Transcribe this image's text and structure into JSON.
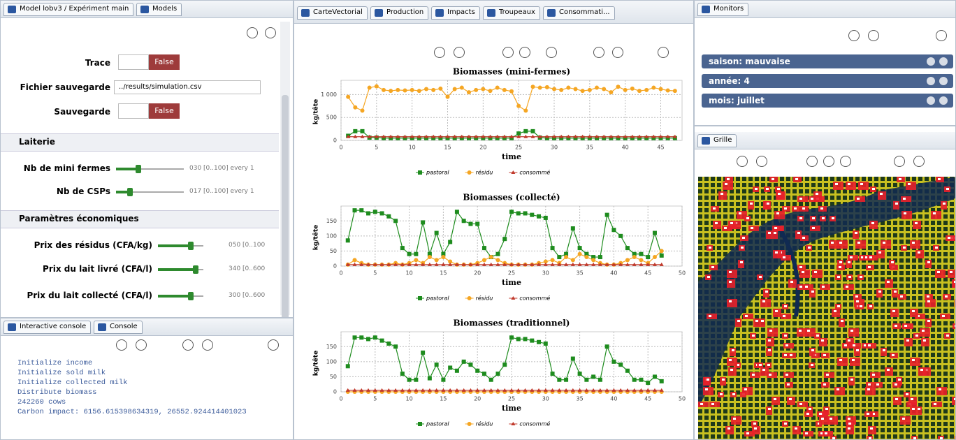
{
  "params_panel": {
    "tabs": [
      "Model lobv3 / Expériment main",
      "Models"
    ],
    "fields": [
      {
        "label": "Trace",
        "value": "False"
      },
      {
        "label": "Fichier sauvegarde",
        "value": "../results/simulation.csv"
      },
      {
        "label": "Sauvegarde",
        "value": "False"
      }
    ],
    "sections": [
      {
        "title": "Laiterie",
        "sliders": [
          {
            "label": "Nb de mini fermes",
            "value_text": "030 [0..100] every 1"
          },
          {
            "label": "Nb de CSPs",
            "value_text": "017 [0..100] every 1"
          }
        ]
      },
      {
        "title": "Paramètres économiques",
        "sliders": [
          {
            "label": "Prix des résidus (CFA/kg)",
            "value_text": "050 [0..100"
          },
          {
            "label": "Prix du lait livré (CFA/l)",
            "value_text": "340 [0..600"
          },
          {
            "label": "Prix du lait collecté (CFA/l)",
            "value_text": "300 [0..600"
          }
        ]
      }
    ]
  },
  "console": {
    "tabs": [
      "Interactive console",
      "Console"
    ],
    "lines": [
      "Initialize income",
      "Initialize sold milk",
      "Initialize collected milk",
      "Distribute biomass",
      "242260 cows",
      "Carbon impact: 6156.615398634319, 26552.924414401023"
    ]
  },
  "display_tabs": [
    "CarteVectorial",
    "Production",
    "Impacts",
    "Troupeaux",
    "Consommati..."
  ],
  "chart_data": [
    {
      "type": "line",
      "title": "Biomasses (mini-fermes)",
      "x_label": "time",
      "y_label": "kg/tête",
      "xlim": [
        0,
        48
      ],
      "xticks": [
        0,
        5,
        10,
        15,
        20,
        25,
        30,
        35,
        40,
        45
      ],
      "ylim": [
        0,
        1250
      ],
      "yticks": [
        0,
        500,
        {
          "value": 1000,
          "label": "1 000"
        }
      ],
      "grid": true,
      "x": [
        1,
        2,
        3,
        4,
        5,
        6,
        7,
        8,
        9,
        10,
        11,
        12,
        13,
        14,
        15,
        16,
        17,
        18,
        19,
        20,
        21,
        22,
        23,
        24,
        25,
        26,
        27,
        28,
        29,
        30,
        31,
        32,
        33,
        34,
        35,
        36,
        37,
        38,
        39,
        40,
        41,
        42,
        43,
        44,
        45,
        46,
        47
      ],
      "series": [
        {
          "name": "pastoral",
          "color": "#1e8c1e",
          "marker": "square",
          "values": [
            100,
            200,
            200,
            60,
            60,
            50,
            50,
            50,
            50,
            50,
            50,
            50,
            50,
            50,
            50,
            50,
            50,
            50,
            50,
            50,
            50,
            50,
            50,
            50,
            150,
            200,
            200,
            60,
            50,
            50,
            50,
            50,
            50,
            50,
            50,
            50,
            50,
            50,
            50,
            50,
            50,
            50,
            50,
            50,
            50,
            50,
            50
          ]
        },
        {
          "name": "résidu",
          "color": "#f5a623",
          "marker": "circle",
          "values": [
            950,
            720,
            650,
            1150,
            1180,
            1100,
            1080,
            1100,
            1090,
            1100,
            1080,
            1120,
            1100,
            1130,
            950,
            1120,
            1150,
            1050,
            1100,
            1120,
            1080,
            1150,
            1100,
            1070,
            750,
            650,
            1170,
            1150,
            1160,
            1120,
            1100,
            1150,
            1120,
            1080,
            1100,
            1150,
            1120,
            1050,
            1170,
            1100,
            1130,
            1080,
            1100,
            1150,
            1120,
            1090,
            1080
          ]
        },
        {
          "name": "consommé",
          "color": "#c0392b",
          "marker": "triangle",
          "values": [
            80,
            80,
            80,
            80,
            80,
            80,
            80,
            80,
            80,
            80,
            80,
            80,
            80,
            80,
            80,
            80,
            80,
            80,
            80,
            80,
            80,
            80,
            80,
            80,
            80,
            80,
            80,
            80,
            80,
            80,
            80,
            80,
            80,
            80,
            80,
            80,
            80,
            80,
            80,
            80,
            80,
            80,
            80,
            80,
            80,
            80,
            80
          ]
        }
      ]
    },
    {
      "type": "line",
      "title": "Biomasses (collecté)",
      "x_label": "time",
      "y_label": "kg/tête",
      "xlim": [
        0,
        50
      ],
      "xticks": [
        0,
        5,
        10,
        15,
        20,
        25,
        30,
        35,
        40,
        45,
        50
      ],
      "ylim": [
        0,
        190
      ],
      "yticks": [
        0,
        50,
        100,
        150
      ],
      "grid": true,
      "x": [
        1,
        2,
        3,
        4,
        5,
        6,
        7,
        8,
        9,
        10,
        11,
        12,
        13,
        14,
        15,
        16,
        17,
        18,
        19,
        20,
        21,
        22,
        23,
        24,
        25,
        26,
        27,
        28,
        29,
        30,
        31,
        32,
        33,
        34,
        35,
        36,
        37,
        38,
        39,
        40,
        41,
        42,
        43,
        44,
        45,
        46,
        47
      ],
      "series": [
        {
          "name": "pastoral",
          "color": "#1e8c1e",
          "marker": "square",
          "values": [
            85,
            185,
            185,
            175,
            180,
            175,
            165,
            150,
            60,
            40,
            40,
            145,
            40,
            110,
            40,
            80,
            180,
            150,
            140,
            140,
            60,
            30,
            40,
            90,
            180,
            175,
            175,
            170,
            165,
            160,
            60,
            30,
            40,
            125,
            60,
            40,
            30,
            30,
            170,
            120,
            100,
            60,
            40,
            40,
            30,
            110,
            35
          ]
        },
        {
          "name": "résidu",
          "color": "#f5a623",
          "marker": "circle",
          "values": [
            5,
            20,
            10,
            5,
            5,
            5,
            5,
            10,
            5,
            10,
            20,
            10,
            30,
            20,
            30,
            15,
            5,
            5,
            5,
            10,
            20,
            30,
            20,
            10,
            5,
            5,
            5,
            5,
            10,
            15,
            20,
            10,
            30,
            20,
            40,
            30,
            20,
            10,
            5,
            5,
            10,
            20,
            30,
            20,
            10,
            30,
            50
          ]
        },
        {
          "name": "consommé",
          "color": "#c0392b",
          "marker": "triangle",
          "values": [
            5,
            5,
            5,
            5,
            5,
            5,
            5,
            5,
            5,
            5,
            5,
            5,
            5,
            5,
            5,
            5,
            5,
            5,
            5,
            5,
            5,
            5,
            5,
            5,
            5,
            5,
            5,
            5,
            5,
            5,
            5,
            5,
            5,
            5,
            5,
            5,
            5,
            5,
            5,
            5,
            5,
            5,
            5,
            5,
            5,
            5,
            5
          ]
        }
      ]
    },
    {
      "type": "line",
      "title": "Biomasses (traditionnel)",
      "x_label": "time",
      "y_label": "kg/tête",
      "xlim": [
        0,
        50
      ],
      "xticks": [
        0,
        5,
        10,
        15,
        20,
        25,
        30,
        35,
        40,
        45,
        50
      ],
      "ylim": [
        0,
        190
      ],
      "yticks": [
        0,
        50,
        100,
        150
      ],
      "grid": true,
      "x": [
        1,
        2,
        3,
        4,
        5,
        6,
        7,
        8,
        9,
        10,
        11,
        12,
        13,
        14,
        15,
        16,
        17,
        18,
        19,
        20,
        21,
        22,
        23,
        24,
        25,
        26,
        27,
        28,
        29,
        30,
        31,
        32,
        33,
        34,
        35,
        36,
        37,
        38,
        39,
        40,
        41,
        42,
        43,
        44,
        45,
        46,
        47
      ],
      "series": [
        {
          "name": "pastoral",
          "color": "#1e8c1e",
          "marker": "square",
          "values": [
            85,
            180,
            180,
            175,
            180,
            170,
            160,
            150,
            60,
            40,
            40,
            130,
            45,
            90,
            40,
            80,
            70,
            100,
            90,
            70,
            60,
            40,
            60,
            90,
            180,
            175,
            175,
            170,
            165,
            160,
            60,
            40,
            40,
            110,
            60,
            40,
            50,
            40,
            150,
            100,
            90,
            70,
            40,
            40,
            30,
            50,
            35
          ]
        },
        {
          "name": "résidu",
          "color": "#f5a623",
          "marker": "circle",
          "values": [
            0,
            0,
            0,
            0,
            0,
            0,
            0,
            0,
            0,
            0,
            0,
            0,
            0,
            0,
            0,
            0,
            0,
            0,
            0,
            0,
            0,
            0,
            0,
            0,
            0,
            0,
            0,
            0,
            0,
            0,
            0,
            0,
            0,
            0,
            0,
            0,
            0,
            0,
            0,
            0,
            0,
            0,
            0,
            0,
            0,
            0,
            0
          ]
        },
        {
          "name": "consommé",
          "color": "#c0392b",
          "marker": "triangle",
          "values": [
            5,
            5,
            5,
            5,
            5,
            5,
            5,
            5,
            5,
            5,
            5,
            5,
            5,
            5,
            5,
            5,
            5,
            5,
            5,
            5,
            5,
            5,
            5,
            5,
            5,
            5,
            5,
            5,
            5,
            5,
            5,
            5,
            5,
            5,
            5,
            5,
            5,
            5,
            5,
            5,
            5,
            5,
            5,
            5,
            5,
            5,
            5
          ]
        }
      ]
    }
  ],
  "monitors": {
    "tab": "Monitors",
    "items": [
      "saison: mauvaise",
      "année: 4",
      "mois: juillet"
    ]
  },
  "grid_view": {
    "tab": "Grille"
  }
}
